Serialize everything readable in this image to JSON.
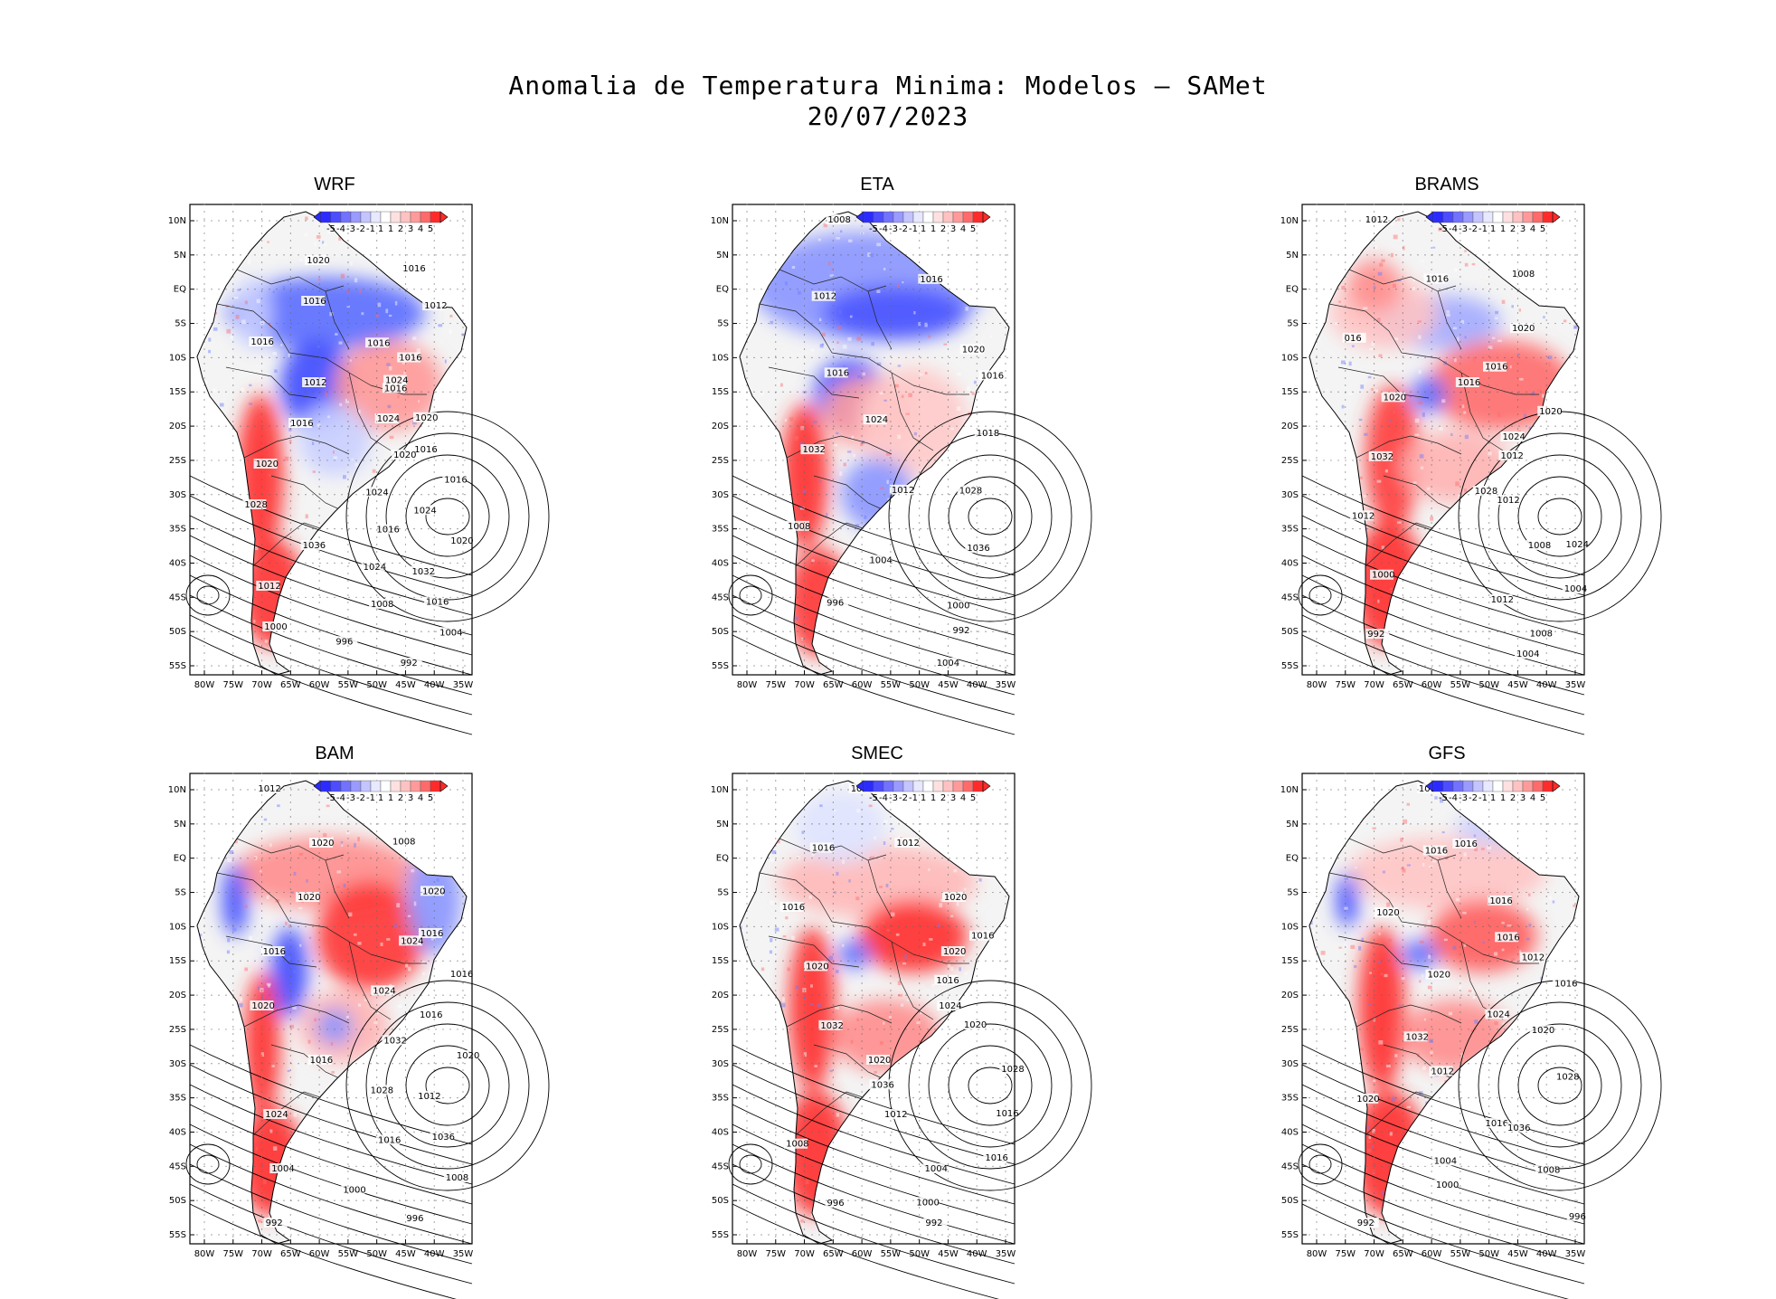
{
  "figure": {
    "title": "Anomalia de Temperatura Minima: Modelos — SAMet",
    "date": "20/07/2023"
  },
  "axes": {
    "lat_labels": [
      "10N",
      "5N",
      "EQ",
      "5S",
      "10S",
      "15S",
      "20S",
      "25S",
      "30S",
      "35S",
      "40S",
      "45S",
      "50S",
      "55S"
    ],
    "lon_labels": [
      "80W",
      "75W",
      "70W",
      "65W",
      "60W",
      "55W",
      "50W",
      "45W",
      "40W",
      "35W"
    ]
  },
  "legend": {
    "labels": [
      "-5",
      "-4",
      "-3",
      "-2",
      "-1",
      "1",
      "1",
      "2",
      "3",
      "4",
      "5"
    ],
    "colors": [
      "#2b2bff",
      "#4d4dff",
      "#7272ff",
      "#9a9aff",
      "#c4c4ff",
      "#e8e8ff",
      "#ffffff",
      "#ffe0e0",
      "#ffc2c2",
      "#ff9a9a",
      "#ff6b6b",
      "#ff2b2b"
    ]
  },
  "colors": {
    "warm": "#ff2b2b",
    "cold": "#2b2bff",
    "neutral": "#f4f4f4"
  },
  "panels": [
    {
      "name": "WRF",
      "isobars": [
        "1016",
        "1016",
        "1016",
        "1020",
        "1012",
        "1016",
        "1016",
        "1016",
        "1024",
        "1016",
        "1024",
        "1016",
        "1012",
        "1020",
        "1016",
        "1016",
        "1020",
        "1024",
        "1020",
        "1024",
        "1020",
        "1028",
        "1016",
        "1032",
        "1036",
        "1024",
        "1016",
        "1012",
        "1008",
        "1004",
        "1000",
        "996",
        "992"
      ]
    },
    {
      "name": "ETA",
      "isobars": [
        "1008",
        "1016",
        "1016",
        "1012",
        "1020",
        "1018",
        "1016",
        "1024",
        "1028",
        "1032",
        "1012",
        "1036",
        "1008",
        "1004",
        "1000",
        "996",
        "992",
        "1004"
      ]
    },
    {
      "name": "BRAMS",
      "isobars": [
        "1012",
        "1008",
        "1016",
        "1016",
        "1020",
        "1020",
        "016",
        "1016",
        "1012",
        "1020",
        "1024",
        "1012",
        "1032",
        "1028",
        "1024",
        "1012",
        "1008",
        "1004",
        "1000",
        "1012",
        "1008",
        "992",
        "1004"
      ]
    },
    {
      "name": "BAM",
      "isobars": [
        "1012",
        "1008",
        "1016",
        "1020",
        "1020",
        "1016",
        "1020",
        "1024",
        "1016",
        "1016",
        "1024",
        "1020",
        "1020",
        "1032",
        "1012",
        "1016",
        "1028",
        "1036",
        "1024",
        "1016",
        "1008",
        "1004",
        "1000",
        "996",
        "992"
      ]
    },
    {
      "name": "SMEC",
      "isobars": [
        "1008",
        "1012",
        "1016",
        "1016",
        "1020",
        "1016",
        "1016",
        "1020",
        "1020",
        "1020",
        "1024",
        "1028",
        "1032",
        "1020",
        "1016",
        "1036",
        "1012",
        "1016",
        "1008",
        "1004",
        "1000",
        "996",
        "992"
      ]
    },
    {
      "name": "GFS",
      "isobars": [
        "1012",
        "1016",
        "1016",
        "1016",
        "1016",
        "1016",
        "1020",
        "1012",
        "1020",
        "1020",
        "1024",
        "1028",
        "1032",
        "1012",
        "1016",
        "1020",
        "1036",
        "1008",
        "1004",
        "1000",
        "996",
        "992"
      ]
    }
  ]
}
